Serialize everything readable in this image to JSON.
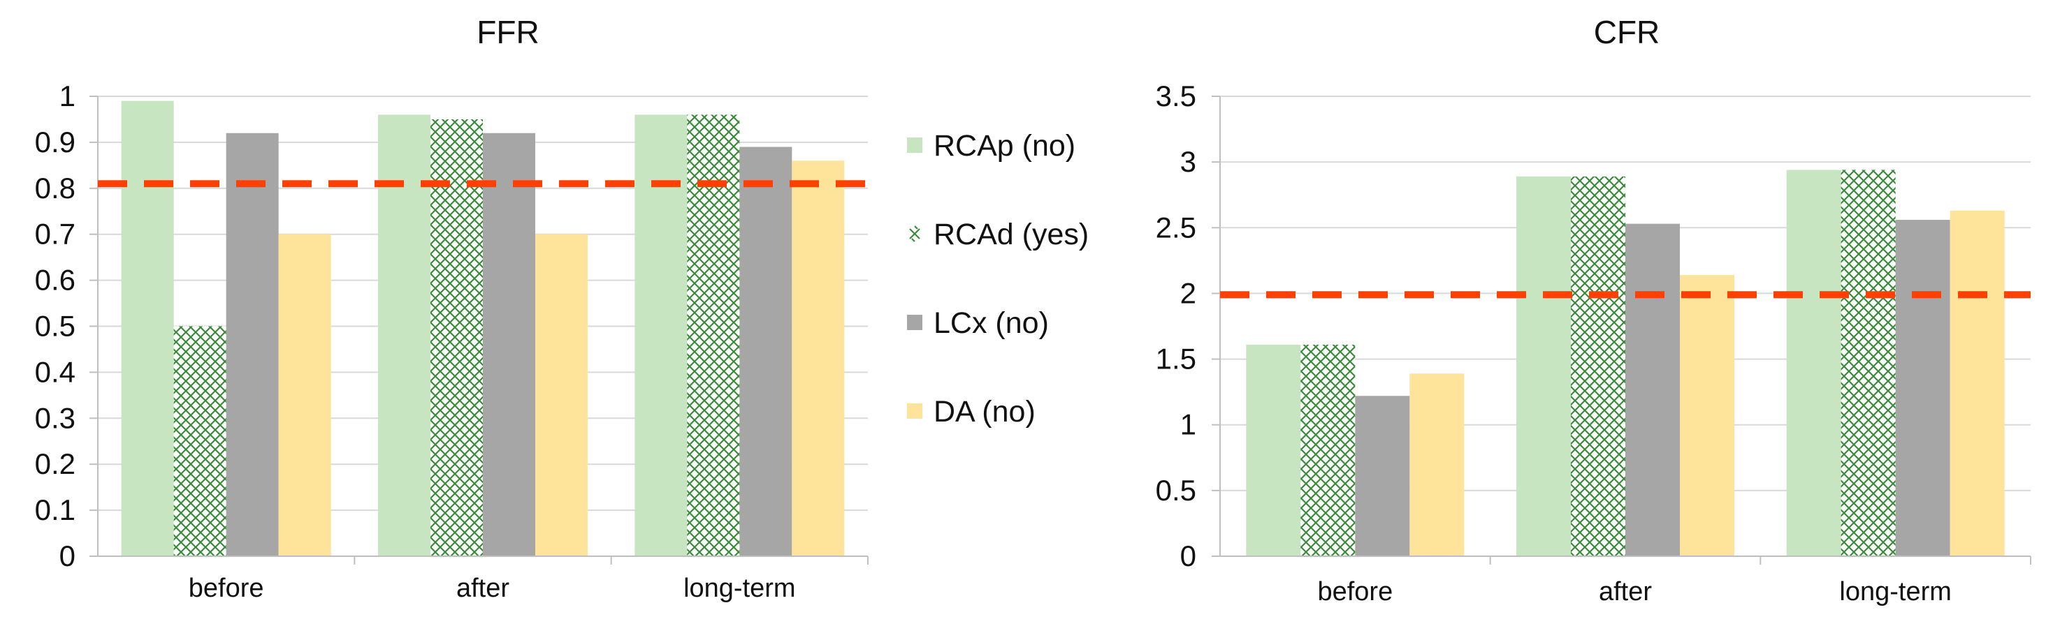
{
  "colors": {
    "RCAp": "#c6e5c0",
    "RCAd_hatch": "#3b8a3b",
    "LCx": "#a6a6a6",
    "DA": "#fde49a",
    "threshold": "#ff4000",
    "axis": "#bfbfbf",
    "grid": "#d9d9d9"
  },
  "legend": {
    "position": "between charts, right of FFR",
    "items": [
      {
        "series": "RCAp",
        "label": "RCAp (no)",
        "pattern": "solid"
      },
      {
        "series": "RCAd",
        "label": "RCAd (yes)",
        "pattern": "crosshatch"
      },
      {
        "series": "LCx",
        "label": "LCx (no)",
        "pattern": "solid"
      },
      {
        "series": "DA",
        "label": "DA (no)",
        "pattern": "solid"
      }
    ]
  },
  "chart_data": [
    {
      "type": "bar",
      "title": "FFR",
      "xlabel": "",
      "ylabel": "",
      "categories": [
        "before",
        "after",
        "long-term"
      ],
      "series": [
        {
          "name": "RCAp",
          "values": [
            0.99,
            0.96,
            0.96
          ]
        },
        {
          "name": "RCAd",
          "values": [
            0.5,
            0.95,
            0.96
          ]
        },
        {
          "name": "LCx",
          "values": [
            0.92,
            0.92,
            0.89
          ]
        },
        {
          "name": "DA",
          "values": [
            0.7,
            0.7,
            0.86
          ]
        }
      ],
      "ylim": [
        0,
        1
      ],
      "yticks": [
        0,
        0.1,
        0.2,
        0.3,
        0.4,
        0.5,
        0.6,
        0.7,
        0.8,
        0.9,
        1
      ],
      "ytick_labels": [
        "0",
        "0.1",
        "0.2",
        "0.3",
        "0.4",
        "0.5",
        "0.6",
        "0.7",
        "0.8",
        "0.9",
        "1"
      ],
      "threshold": 0.81,
      "grid": true
    },
    {
      "type": "bar",
      "title": "CFR",
      "xlabel": "",
      "ylabel": "",
      "categories": [
        "before",
        "after",
        "long-term"
      ],
      "series": [
        {
          "name": "RCAp",
          "values": [
            1.61,
            2.89,
            2.94
          ]
        },
        {
          "name": "RCAd",
          "values": [
            1.61,
            2.89,
            2.94
          ]
        },
        {
          "name": "LCx",
          "values": [
            1.22,
            2.53,
            2.56
          ]
        },
        {
          "name": "DA",
          "values": [
            1.39,
            2.14,
            2.63
          ]
        }
      ],
      "ylim": [
        0,
        3.5
      ],
      "yticks": [
        0,
        0.5,
        1,
        1.5,
        2,
        2.5,
        3,
        3.5
      ],
      "ytick_labels": [
        "0",
        "0.5",
        "1",
        "1.5",
        "2",
        "2.5",
        "3",
        "3.5"
      ],
      "threshold": 1.99,
      "grid": true
    }
  ]
}
